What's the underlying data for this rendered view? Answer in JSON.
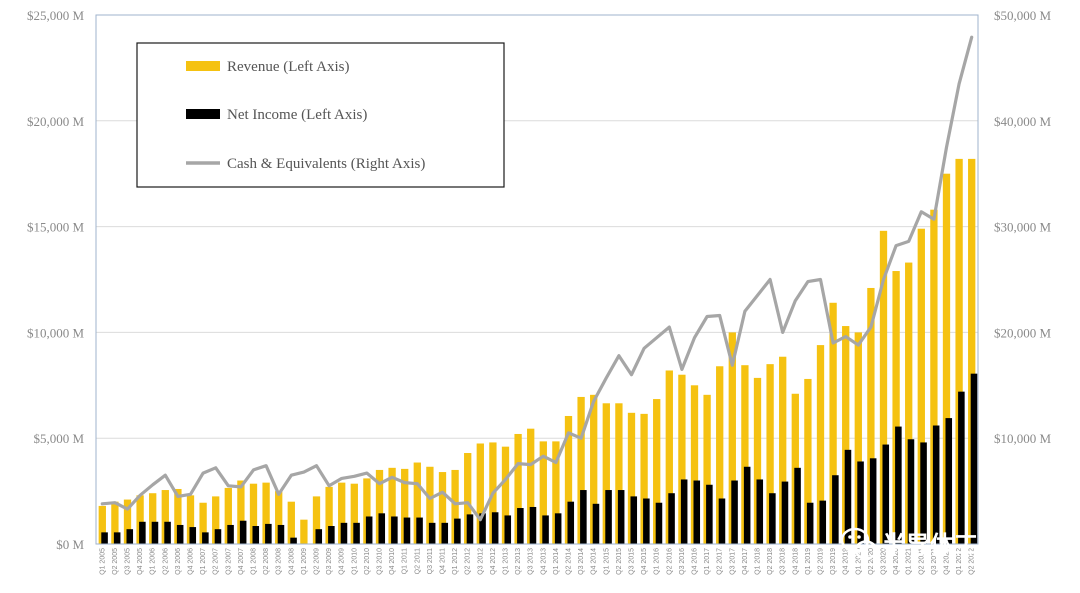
{
  "chart_data": {
    "type": "bar",
    "categories": [
      "Q1 2005",
      "Q2 2005",
      "Q3 2005",
      "Q4 2005",
      "Q1 2006",
      "Q2 2006",
      "Q3 2006",
      "Q4 2006",
      "Q1 2007",
      "Q2 2007",
      "Q3 2007",
      "Q4 2007",
      "Q1 2008",
      "Q2 2008",
      "Q3 2008",
      "Q4 2008",
      "Q1 2009",
      "Q2 2009",
      "Q3 2009",
      "Q4 2009",
      "Q1 2010",
      "Q2 2010",
      "Q3 2010",
      "Q4 2010",
      "Q1 2011",
      "Q2 2011",
      "Q3 2011",
      "Q4 2011",
      "Q1 2012",
      "Q2 2012",
      "Q3 2012",
      "Q4 2012",
      "Q1 2013",
      "Q2 2013",
      "Q3 2013",
      "Q4 2013",
      "Q1 2014",
      "Q2 2014",
      "Q3 2014",
      "Q4 2014",
      "Q1 2015",
      "Q2 2015",
      "Q3 2015",
      "Q4 2015",
      "Q1 2016",
      "Q2 2016",
      "Q3 2016",
      "Q4 2016",
      "Q1 2017",
      "Q2 2017",
      "Q3 2017",
      "Q4 2017",
      "Q1 2018",
      "Q2 2018",
      "Q3 2018",
      "Q4 2018",
      "Q1 2019",
      "Q2 2019",
      "Q3 2019",
      "Q4 2019",
      "Q1 2020",
      "Q2 2020",
      "Q3 2020",
      "Q4 2020",
      "Q1 2021",
      "Q2 2021",
      "Q3 2021",
      "Q4 2021",
      "Q1 2022",
      "Q2 2022"
    ],
    "series": [
      {
        "name": "Revenue (Left Axis)",
        "axis": "left",
        "type": "bar",
        "color": "#f5c211",
        "values": [
          1800,
          2000,
          2100,
          2300,
          2400,
          2550,
          2600,
          2300,
          1950,
          2250,
          2650,
          3000,
          2850,
          2900,
          2500,
          2000,
          1150,
          2250,
          2700,
          2900,
          2850,
          3100,
          3500,
          3600,
          3550,
          3850,
          3650,
          3400,
          3500,
          4300,
          4750,
          4800,
          4600,
          5200,
          5450,
          4850,
          4850,
          6050,
          6950,
          7050,
          6650,
          6650,
          6200,
          6150,
          6850,
          8200,
          8000,
          7500,
          7050,
          8400,
          10000,
          8450,
          7850,
          8500,
          8850,
          7100,
          7800,
          9400,
          11400,
          10300,
          10000,
          12100,
          14800,
          12900,
          13300,
          14900,
          15800,
          17500,
          18200,
          18200
        ]
      },
      {
        "name": "Net Income (Left Axis)",
        "axis": "left",
        "type": "bar",
        "color": "#000000",
        "values": [
          550,
          550,
          700,
          1050,
          1050,
          1050,
          900,
          800,
          550,
          700,
          900,
          1100,
          850,
          950,
          900,
          300,
          0,
          700,
          850,
          1000,
          1000,
          1300,
          1450,
          1300,
          1250,
          1250,
          1000,
          1000,
          1200,
          1400,
          1450,
          1500,
          1350,
          1700,
          1750,
          1350,
          1450,
          2000,
          2550,
          1900,
          2550,
          2550,
          2250,
          2150,
          1950,
          2400,
          3050,
          3000,
          2800,
          2150,
          3000,
          3650,
          3050,
          2400,
          2950,
          3600,
          1950,
          2050,
          3250,
          4450,
          3900,
          4050,
          4700,
          5550,
          4950,
          4800,
          5600,
          5950,
          7200,
          8050
        ]
      },
      {
        "name": "Cash & Equivalents (Right Axis)",
        "axis": "right",
        "type": "line",
        "color": "#a6a6a6",
        "values": [
          3800,
          3900,
          3300,
          4600,
          5600,
          6500,
          4500,
          4700,
          6700,
          7200,
          5500,
          5400,
          7000,
          7400,
          4700,
          6500,
          6800,
          7400,
          5500,
          6200,
          6400,
          6700,
          5700,
          6300,
          5800,
          5700,
          4300,
          4900,
          3800,
          3900,
          2300,
          4800,
          6100,
          7600,
          7500,
          8300,
          7700,
          10500,
          10000,
          13500,
          15700,
          17800,
          16000,
          18500,
          19500,
          20500,
          16500,
          19500,
          21500,
          21600,
          16900,
          22000,
          23500,
          25000,
          20000,
          23000,
          24800,
          25000,
          19000,
          19600,
          18800,
          20500,
          25000,
          28200,
          28600,
          31400,
          30700,
          37500,
          43500,
          47900
        ]
      }
    ],
    "y_left": {
      "min": 0,
      "max": 25000,
      "ticks": [
        0,
        5000,
        10000,
        15000,
        20000,
        25000
      ],
      "tick_labels": [
        "$0 M",
        "$5,000 M",
        "$10,000 M",
        "$15,000 M",
        "$20,000 M",
        "$25,000 M"
      ]
    },
    "y_right": {
      "min": 0,
      "max": 50000,
      "ticks": [
        10000,
        20000,
        30000,
        40000,
        50000
      ],
      "tick_labels": [
        "$10,000 M",
        "$20,000 M",
        "$30,000 M",
        "$40,000 M",
        "$50,000 M"
      ]
    },
    "grid": "horizontal",
    "legend": {
      "placement": "top-left",
      "entries": [
        "Revenue (Left Axis)",
        "Net Income (Left Axis)",
        "Cash & Equivalents (Right Axis)"
      ]
    }
  },
  "watermark": {
    "text": "半导体工程师",
    "icon": "wechat-icon"
  }
}
